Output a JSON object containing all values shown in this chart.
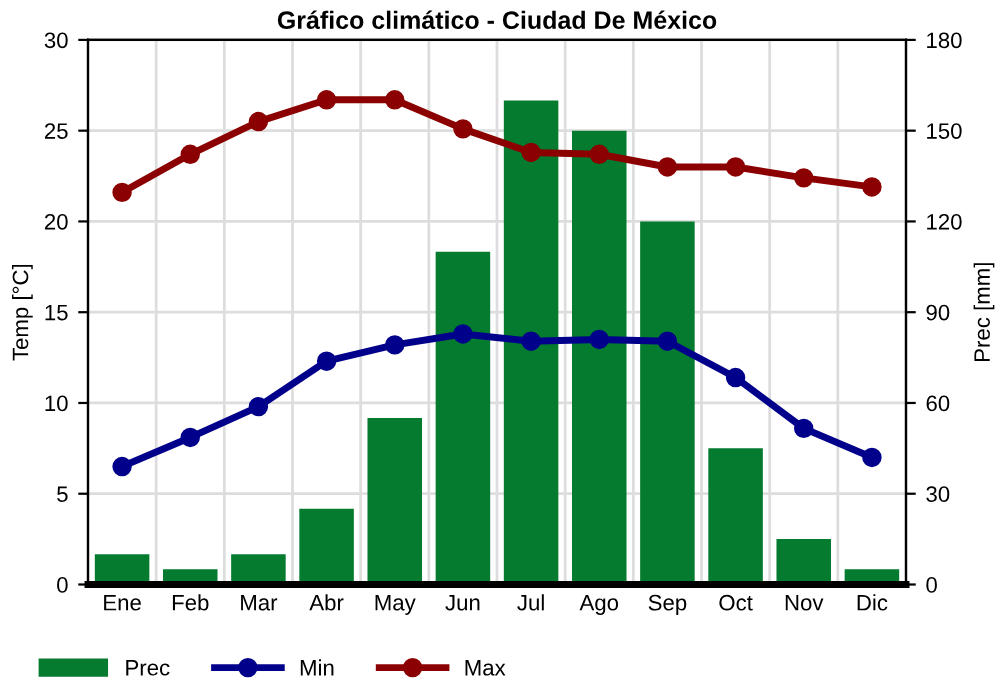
{
  "chart_data": {
    "type": "bar",
    "title": "Gráfico climático - Ciudad De México",
    "ylabel": "Temp [°C]",
    "y2label": "Prec [mm]",
    "categories": [
      "Ene",
      "Feb",
      "Mar",
      "Abr",
      "May",
      "Jun",
      "Jul",
      "Ago",
      "Sep",
      "Oct",
      "Nov",
      "Dic"
    ],
    "series": [
      {
        "name": "Prec",
        "axis": "y2",
        "color": "#047b2f",
        "values": [
          10,
          5,
          10,
          25,
          55,
          110,
          160,
          150,
          120,
          45,
          15,
          5
        ]
      },
      {
        "name": "Min",
        "type": "line",
        "color": "#00008b",
        "marker": "circle",
        "values": [
          6.5,
          8.1,
          9.8,
          12.3,
          13.2,
          13.8,
          13.4,
          13.5,
          13.4,
          11.4,
          8.6,
          7.0
        ]
      },
      {
        "name": "Max",
        "type": "line",
        "color": "#8b0000",
        "marker": "circle",
        "values": [
          21.6,
          23.7,
          25.5,
          26.7,
          26.7,
          25.1,
          23.8,
          23.7,
          23.0,
          23.0,
          22.4,
          21.9
        ]
      }
    ],
    "ylim": [
      0,
      30
    ],
    "yticks": [
      0,
      5,
      10,
      15,
      20,
      25,
      30
    ],
    "y2lim": [
      0,
      180
    ],
    "y2ticks": [
      0,
      30,
      60,
      90,
      120,
      150,
      180
    ],
    "grid": true,
    "legend": "bottom left"
  }
}
